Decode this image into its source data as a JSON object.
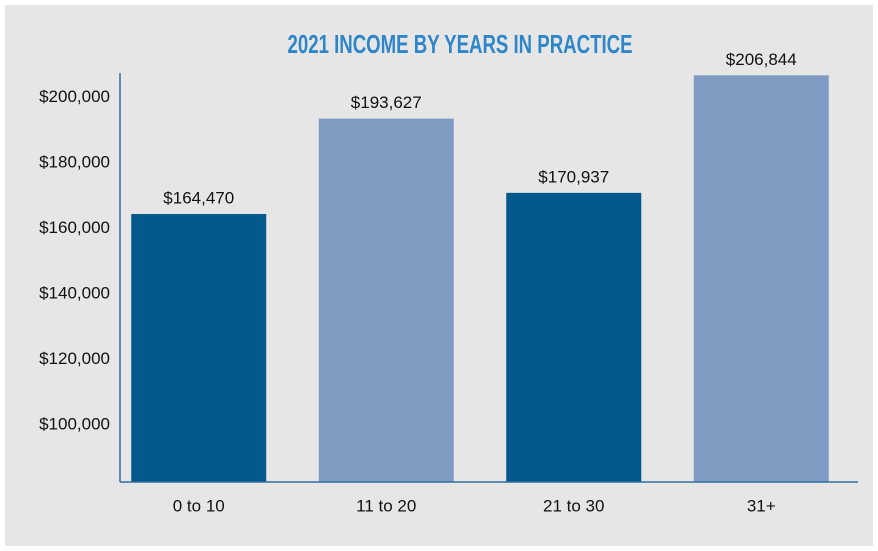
{
  "chart_data": {
    "type": "bar",
    "title": "2021 INCOME BY YEARS IN PRACTICE",
    "categories": [
      "0 to 10",
      "11 to 20",
      "21 to 30",
      "31+"
    ],
    "values": [
      164470,
      193627,
      170937,
      206844
    ],
    "value_labels": [
      "$164,470",
      "$193,627",
      "$170,937",
      "$206,844"
    ],
    "colors": [
      "#03588c",
      "#7f9bc1",
      "#03588c",
      "#7f9bc1"
    ],
    "ylim": [
      82600,
      210000
    ],
    "yticks": [
      {
        "value": 100000,
        "label": "$100,000"
      },
      {
        "value": 120000,
        "label": "$120,000"
      },
      {
        "value": 140000,
        "label": "$140,000"
      },
      {
        "value": 160000,
        "label": "$160,000"
      },
      {
        "value": 180000,
        "label": "$180,000"
      },
      {
        "value": 200000,
        "label": "$200,000"
      }
    ],
    "grid": false
  }
}
